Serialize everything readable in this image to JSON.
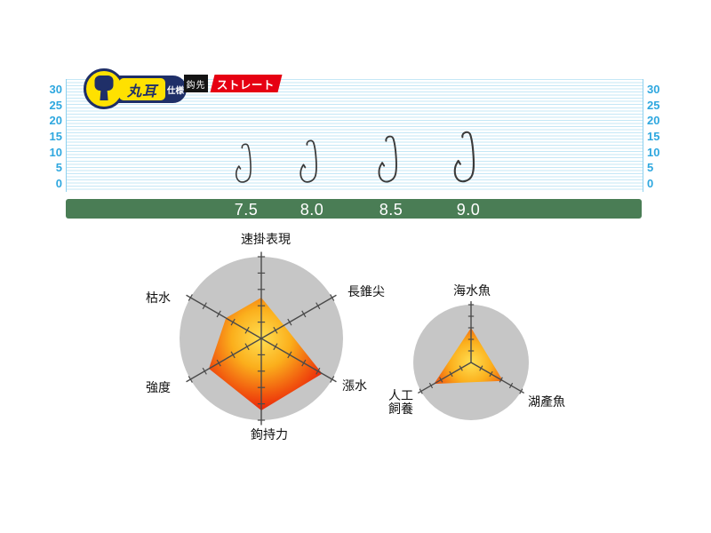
{
  "badge": {
    "title": "丸耳",
    "subtitle": "仕様",
    "navy": "#1f2f68",
    "yellow": "#ffe100"
  },
  "hook_tip": {
    "label": "鈎先",
    "value": "ストレート",
    "value_bg": "#e60012"
  },
  "ruler": {
    "tick_labels": [
      "30",
      "25",
      "20",
      "15",
      "10",
      "5",
      "0"
    ],
    "label_color": "#2ea7df",
    "line_color": "#c5e7f6",
    "unit": "mm-scale"
  },
  "size_bar": {
    "sizes": [
      "7.5",
      "8.0",
      "8.5",
      "9.0"
    ],
    "bar_color": "#4a7d55",
    "text_color": "#ffffff"
  },
  "chart_data": [
    {
      "type": "radar",
      "title": "hook performance radar",
      "axes": [
        "速掛表現",
        "長錐尖",
        "漲水",
        "鉤持力",
        "強度",
        "枯水"
      ],
      "values": [
        2.5,
        1.6,
        4.3,
        4.4,
        3.7,
        2.5
      ],
      "max": 5,
      "ticks_per_axis": 5,
      "background": "circle",
      "circle_color": "#c6c6c6",
      "axis_color": "#4a4a4a",
      "fill_gradient": [
        "#ffdf52",
        "#fbaf1c",
        "#f1570e",
        "#e81309"
      ],
      "legend": "none"
    },
    {
      "type": "radar",
      "title": "target fish radar",
      "axes": [
        "海水魚",
        "湖產魚",
        "人工飼養"
      ],
      "axes_display": [
        "海水魚",
        "湖產魚",
        "人工\n飼養"
      ],
      "values": [
        3.0,
        3.2,
        3.7
      ],
      "max": 5,
      "ticks_per_axis": 5,
      "background": "circle",
      "circle_color": "#c6c6c6",
      "axis_color": "#4a4a4a",
      "fill_gradient": [
        "#ffdf52",
        "#fbaf1c",
        "#f1570e",
        "#e81309"
      ],
      "legend": "none"
    }
  ]
}
